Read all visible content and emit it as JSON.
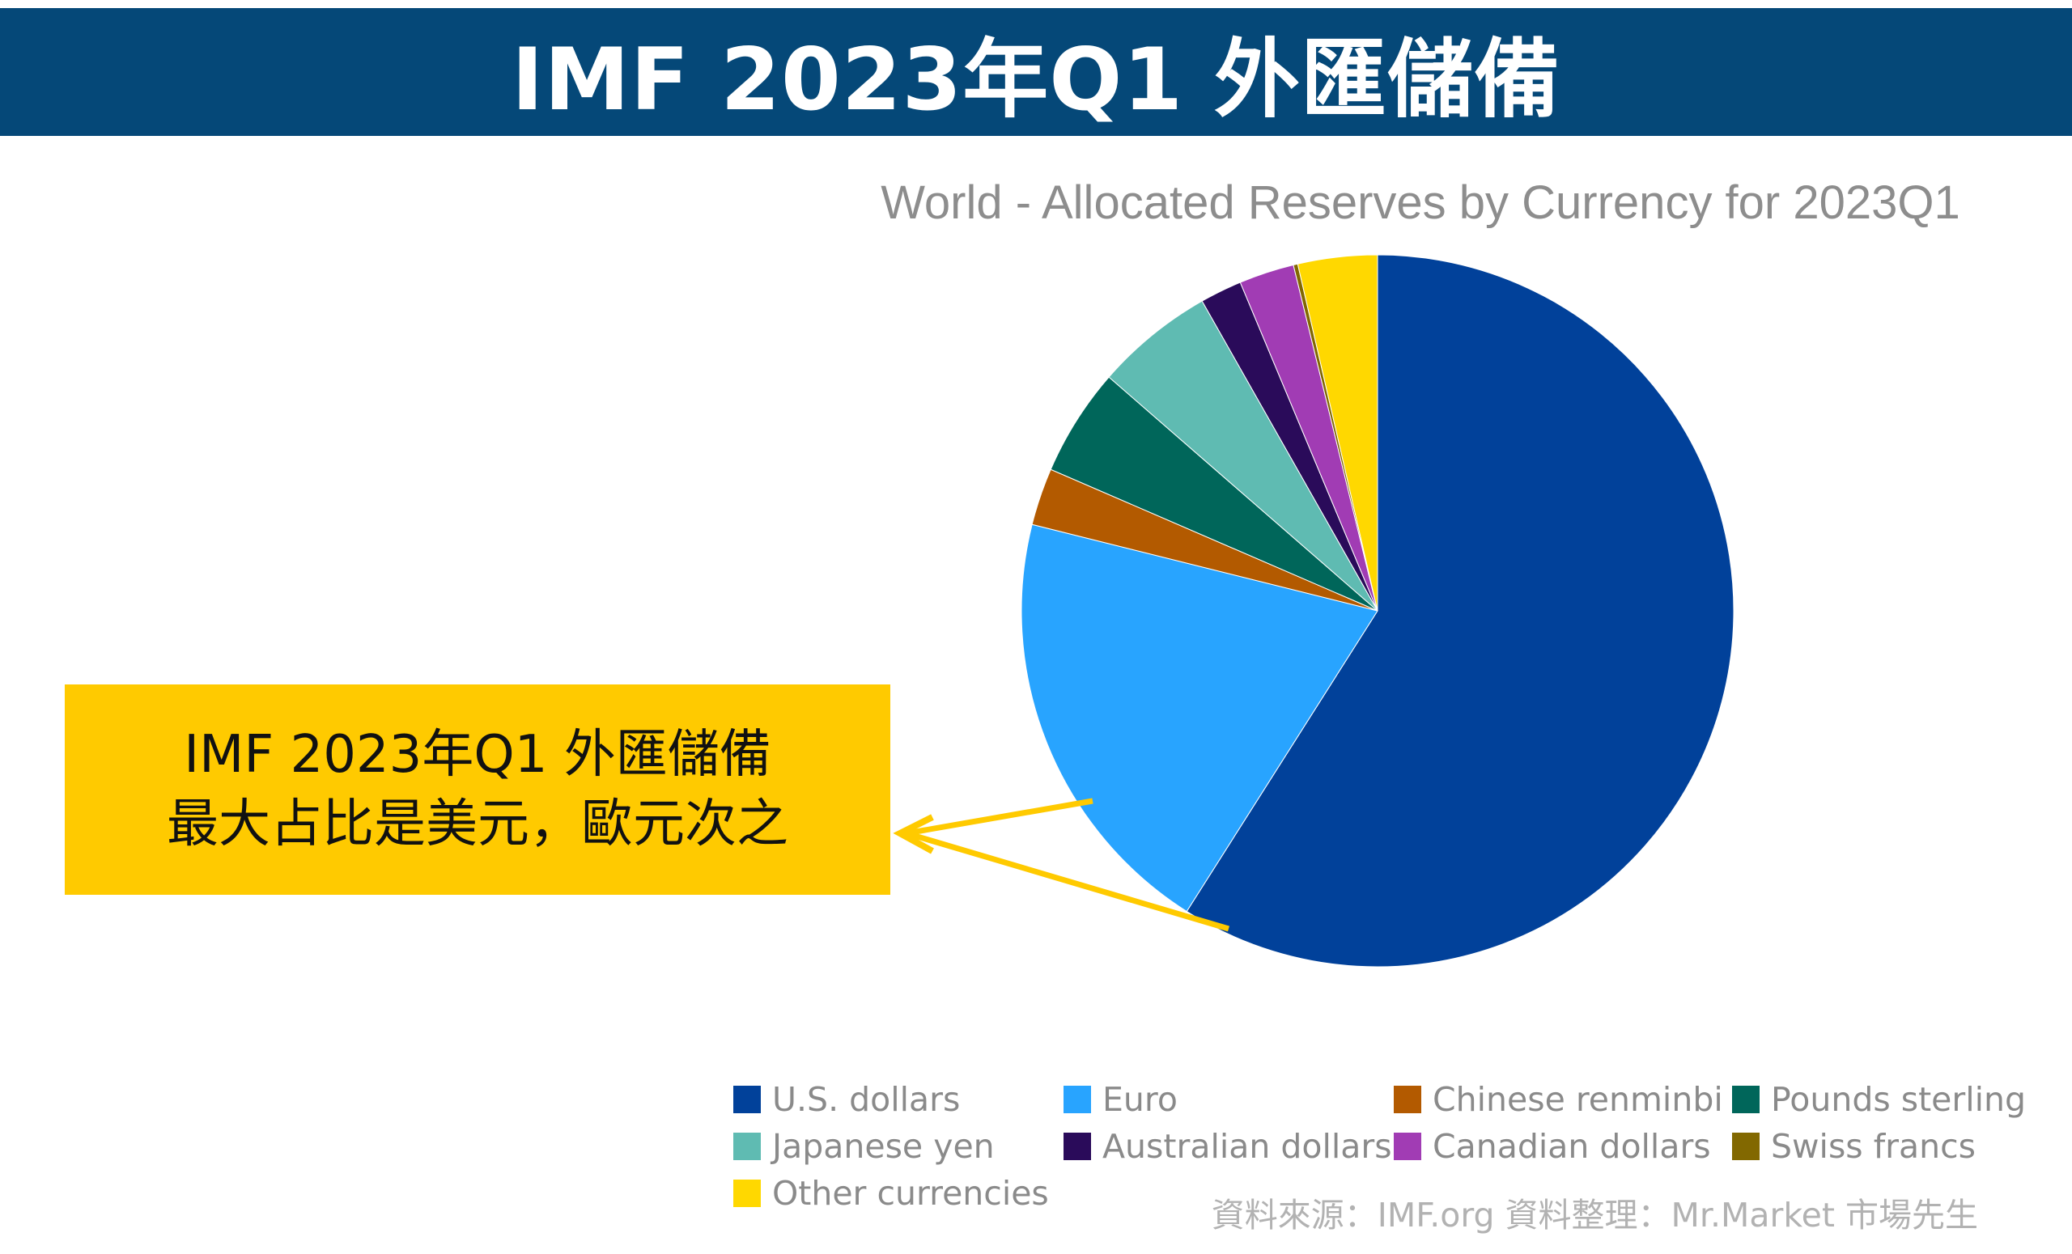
{
  "banner": {
    "title": "IMF 2023年Q1 外匯儲備"
  },
  "callout": {
    "line1": "IMF 2023年Q1 外匯儲備",
    "line2": "最大占比是美元，歐元次之",
    "color": "#FFCA00"
  },
  "source": {
    "text": "資料來源：IMF.org  資料整理：Mr.Market 市場先生"
  },
  "chart_data": {
    "type": "pie",
    "title": "World - Allocated Reserves by Currency for 2023Q1",
    "start_angle": "12 o'clock",
    "direction": "clockwise",
    "legend_position": "bottom",
    "series": [
      {
        "name": "U.S. dollars",
        "value": 59.0,
        "color": "#01419A"
      },
      {
        "name": "Euro",
        "value": 19.9,
        "color": "#28A4FF"
      },
      {
        "name": "Chinese renminbi",
        "value": 2.6,
        "color": "#B35A00"
      },
      {
        "name": "Pounds sterling",
        "value": 4.9,
        "color": "#00665A"
      },
      {
        "name": "Japanese yen",
        "value": 5.4,
        "color": "#5FBBB2"
      },
      {
        "name": "Australian dollars",
        "value": 1.9,
        "color": "#2A0B5A"
      },
      {
        "name": "Canadian dollars",
        "value": 2.5,
        "color": "#A13CB4"
      },
      {
        "name": "Swiss francs",
        "value": 0.2,
        "color": "#826800"
      },
      {
        "name": "Other currencies",
        "value": 3.6,
        "color": "#FFD800"
      }
    ]
  }
}
